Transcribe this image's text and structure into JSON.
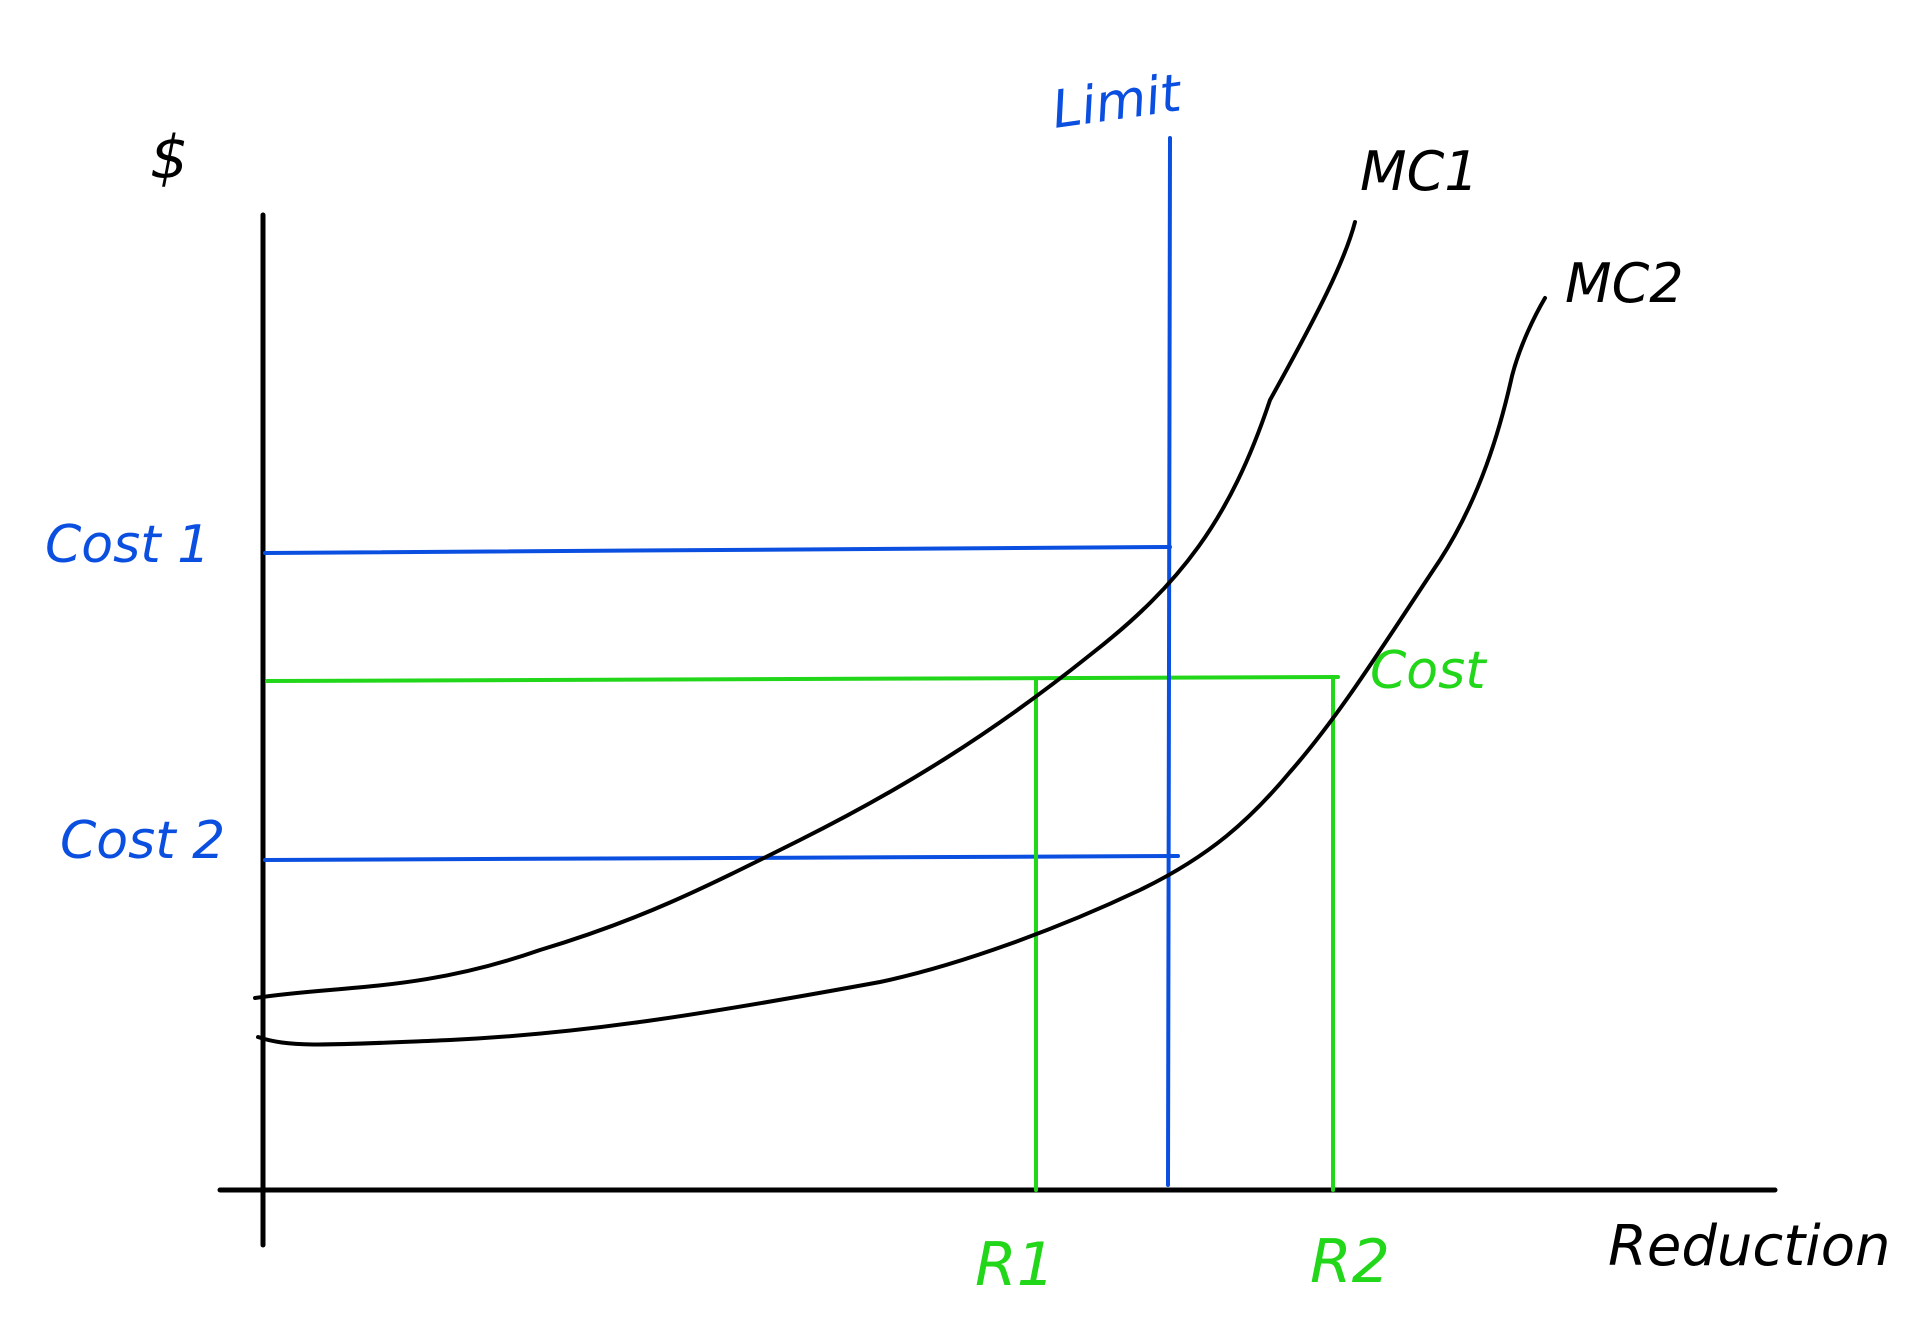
{
  "colors": {
    "axis": "#000000",
    "curve": "#000000",
    "limit": "#0a4fe0",
    "cost_policy": "#22d61a"
  },
  "labels": {
    "y_axis": "$",
    "x_axis": "Reduction",
    "limit": "Limit",
    "mc1": "MC1",
    "mc2": "MC2",
    "cost1": "Cost 1",
    "cost2": "Cost 2",
    "cost_green": "Cost",
    "r1": "R1",
    "r2": "R2"
  }
}
